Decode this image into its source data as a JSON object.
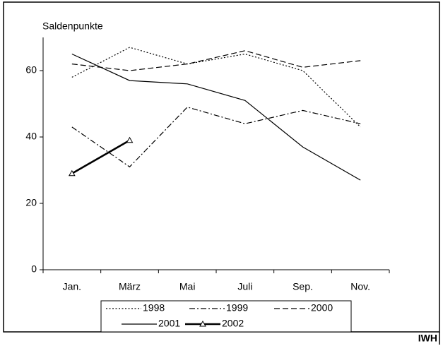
{
  "chart_data": {
    "type": "line",
    "y_label": "Saldenpunkte",
    "source": "IWH",
    "categories": [
      "Jan.",
      "März",
      "Mai",
      "Juli",
      "Sep.",
      "Nov."
    ],
    "ylim": [
      0,
      70
    ],
    "yticks": [
      0,
      20,
      40,
      60
    ],
    "series": [
      {
        "name": "1998",
        "color": "#000000",
        "line_style": "dotted",
        "values": [
          58,
          67,
          62,
          65,
          60,
          43
        ]
      },
      {
        "name": "1999",
        "color": "#000000",
        "line_style": "dash-dot",
        "values": [
          43,
          31,
          49,
          44,
          48,
          44
        ]
      },
      {
        "name": "2000",
        "color": "#000000",
        "line_style": "dashed",
        "values": [
          62,
          60,
          62,
          66,
          61,
          63
        ]
      },
      {
        "name": "2001",
        "color": "#000000",
        "line_style": "solid",
        "values": [
          65,
          57,
          56,
          51,
          37,
          27
        ]
      },
      {
        "name": "2002",
        "color": "#000000",
        "line_style": "thick",
        "marker": "triangle",
        "values": [
          29,
          39,
          null,
          null,
          null,
          null
        ]
      }
    ]
  }
}
